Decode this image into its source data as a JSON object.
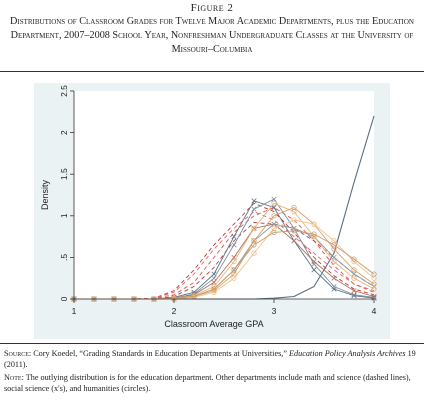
{
  "figure_label": "Figure 2",
  "figure_title": "Distributions of Classroom Grades for Twelve Major Academic Departments, plus the Education Department, 2007–2008 School Year, Nonfreshman Undergraduate Classes at the University of Missouri–Columbia",
  "source": {
    "label": "Source:",
    "text_before": "Cory Koedel, “Grading Standards in Education Departments at Universities,”",
    "journal": "Education Policy Analysis Archives",
    "text_after": "19 (2011)."
  },
  "note": {
    "label": "Note:",
    "text": "The outlying distribution is for the education department. Other departments include math and science (dashed lines), social science (x's), and humanities (circles)."
  },
  "colors": {
    "plot_bg": "#eaf2f4",
    "inner_bg": "#ffffff",
    "education": "#5a6d82",
    "math_science": [
      "#c0392b",
      "#d9534f",
      "#a94442",
      "#e06666"
    ],
    "social_science": [
      "#5d7387",
      "#7d8fa0",
      "#b0705a",
      "#8a9aa8"
    ],
    "humanities": [
      "#e8b37a",
      "#d9a066",
      "#f0c28d",
      "#c99a6b"
    ]
  },
  "chart_data": {
    "type": "line",
    "xlabel": "Classroom Average GPA",
    "ylabel": "Density",
    "xlim": [
      1,
      4
    ],
    "ylim": [
      0,
      2.5
    ],
    "x_ticks": [
      "1",
      "2",
      "3",
      "4"
    ],
    "y_ticks": [
      "0",
      ".5",
      "1",
      "1.5",
      "2",
      "2.5"
    ],
    "grid": false,
    "x_grid": [
      1.0,
      1.2,
      1.4,
      1.6,
      1.8,
      2.0,
      2.2,
      2.4,
      2.6,
      2.8,
      3.0,
      3.2,
      3.4,
      3.6,
      3.8,
      4.0
    ],
    "series": [
      {
        "group": "education",
        "style": "solid",
        "values": [
          0,
          0,
          0,
          0,
          0,
          0,
          0,
          0,
          0,
          0,
          0.01,
          0.03,
          0.15,
          0.55,
          1.4,
          2.2
        ]
      },
      {
        "group": "math_science",
        "style": "dashed",
        "values": [
          0,
          0,
          0,
          0,
          0.01,
          0.1,
          0.35,
          0.65,
          0.9,
          1.15,
          1.05,
          0.8,
          0.5,
          0.28,
          0.12,
          0.05
        ]
      },
      {
        "group": "math_science",
        "style": "dashed",
        "values": [
          0,
          0,
          0,
          0,
          0.01,
          0.05,
          0.2,
          0.5,
          0.8,
          1.0,
          1.1,
          0.95,
          0.7,
          0.4,
          0.18,
          0.08
        ]
      },
      {
        "group": "math_science",
        "style": "dashed",
        "values": [
          0,
          0,
          0,
          0,
          0,
          0.03,
          0.15,
          0.38,
          0.7,
          0.92,
          0.9,
          0.85,
          0.7,
          0.5,
          0.3,
          0.15
        ]
      },
      {
        "group": "math_science",
        "style": "dashed",
        "values": [
          0,
          0,
          0,
          0,
          0.01,
          0.08,
          0.3,
          0.6,
          0.85,
          1.05,
          0.95,
          0.75,
          0.55,
          0.35,
          0.18,
          0.1
        ]
      },
      {
        "group": "social_science",
        "style": "x",
        "values": [
          0,
          0,
          0,
          0,
          0,
          0.02,
          0.08,
          0.3,
          0.75,
          1.18,
          1.1,
          0.7,
          0.35,
          0.12,
          0.04,
          0.01
        ]
      },
      {
        "group": "social_science",
        "style": "x",
        "values": [
          0,
          0,
          0,
          0,
          0,
          0.01,
          0.06,
          0.25,
          0.65,
          1.08,
          1.2,
          0.85,
          0.42,
          0.15,
          0.05,
          0.02
        ]
      },
      {
        "group": "social_science",
        "style": "x",
        "values": [
          0,
          0,
          0,
          0,
          0,
          0.01,
          0.05,
          0.2,
          0.5,
          0.85,
          0.9,
          0.7,
          0.45,
          0.25,
          0.1,
          0.03
        ]
      },
      {
        "group": "social_science",
        "style": "x",
        "values": [
          0,
          0,
          0,
          0,
          0,
          0,
          0.03,
          0.12,
          0.35,
          0.7,
          0.9,
          0.85,
          0.75,
          0.5,
          0.3,
          0.15
        ]
      },
      {
        "group": "humanities",
        "style": "o",
        "values": [
          0,
          0,
          0,
          0,
          0,
          0.01,
          0.04,
          0.15,
          0.45,
          0.85,
          1.15,
          1.05,
          0.75,
          0.45,
          0.25,
          0.12
        ]
      },
      {
        "group": "humanities",
        "style": "o",
        "values": [
          0,
          0,
          0,
          0,
          0,
          0,
          0.03,
          0.1,
          0.3,
          0.7,
          1.0,
          1.1,
          0.9,
          0.6,
          0.35,
          0.18
        ]
      },
      {
        "group": "humanities",
        "style": "o",
        "values": [
          0,
          0,
          0,
          0,
          0,
          0,
          0.02,
          0.08,
          0.25,
          0.55,
          0.85,
          0.95,
          0.9,
          0.7,
          0.45,
          0.25
        ]
      },
      {
        "group": "humanities",
        "style": "o",
        "values": [
          0,
          0,
          0,
          0,
          0,
          0.01,
          0.03,
          0.12,
          0.35,
          0.65,
          0.8,
          0.82,
          0.78,
          0.65,
          0.48,
          0.3
        ]
      }
    ]
  }
}
